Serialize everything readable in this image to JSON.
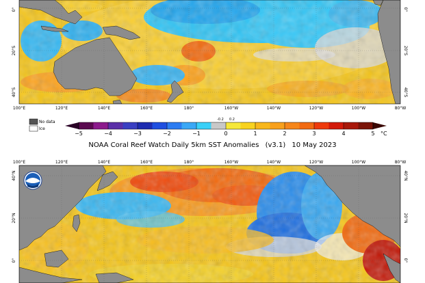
{
  "title": {
    "text": "NOAA Coral Reef Watch Daily 5km SST Anomalies",
    "version": "(v3.1)",
    "date": "10 May 2023"
  },
  "legend": {
    "no_data_label": "No data",
    "ice_label": "Ice",
    "unit": "°C",
    "ticks": [
      "−5",
      "−4",
      "−3",
      "−2",
      "−1",
      "0",
      "1",
      "2",
      "3",
      "4",
      "5"
    ],
    "fine_ticks": [
      "-0.2",
      "0.2"
    ],
    "colors": {
      "no_data": "#555555",
      "ice": "#ffffff",
      "land": "#8c8c8c"
    }
  },
  "top_map": {
    "lon_labels": [
      "100°E",
      "120°E",
      "140°E",
      "160°E",
      "180°",
      "160°W",
      "140°W",
      "120°W",
      "100°W",
      "80°W"
    ],
    "lat_labels": [
      "0°",
      "20°S",
      "40°S"
    ]
  },
  "bottom_map": {
    "lon_labels": [
      "100°E",
      "120°E",
      "140°E",
      "160°E",
      "180°",
      "160°W",
      "140°W",
      "120°W",
      "100°W",
      "80°W"
    ],
    "lat_labels": [
      "40°N",
      "20°N",
      "0°"
    ]
  }
}
